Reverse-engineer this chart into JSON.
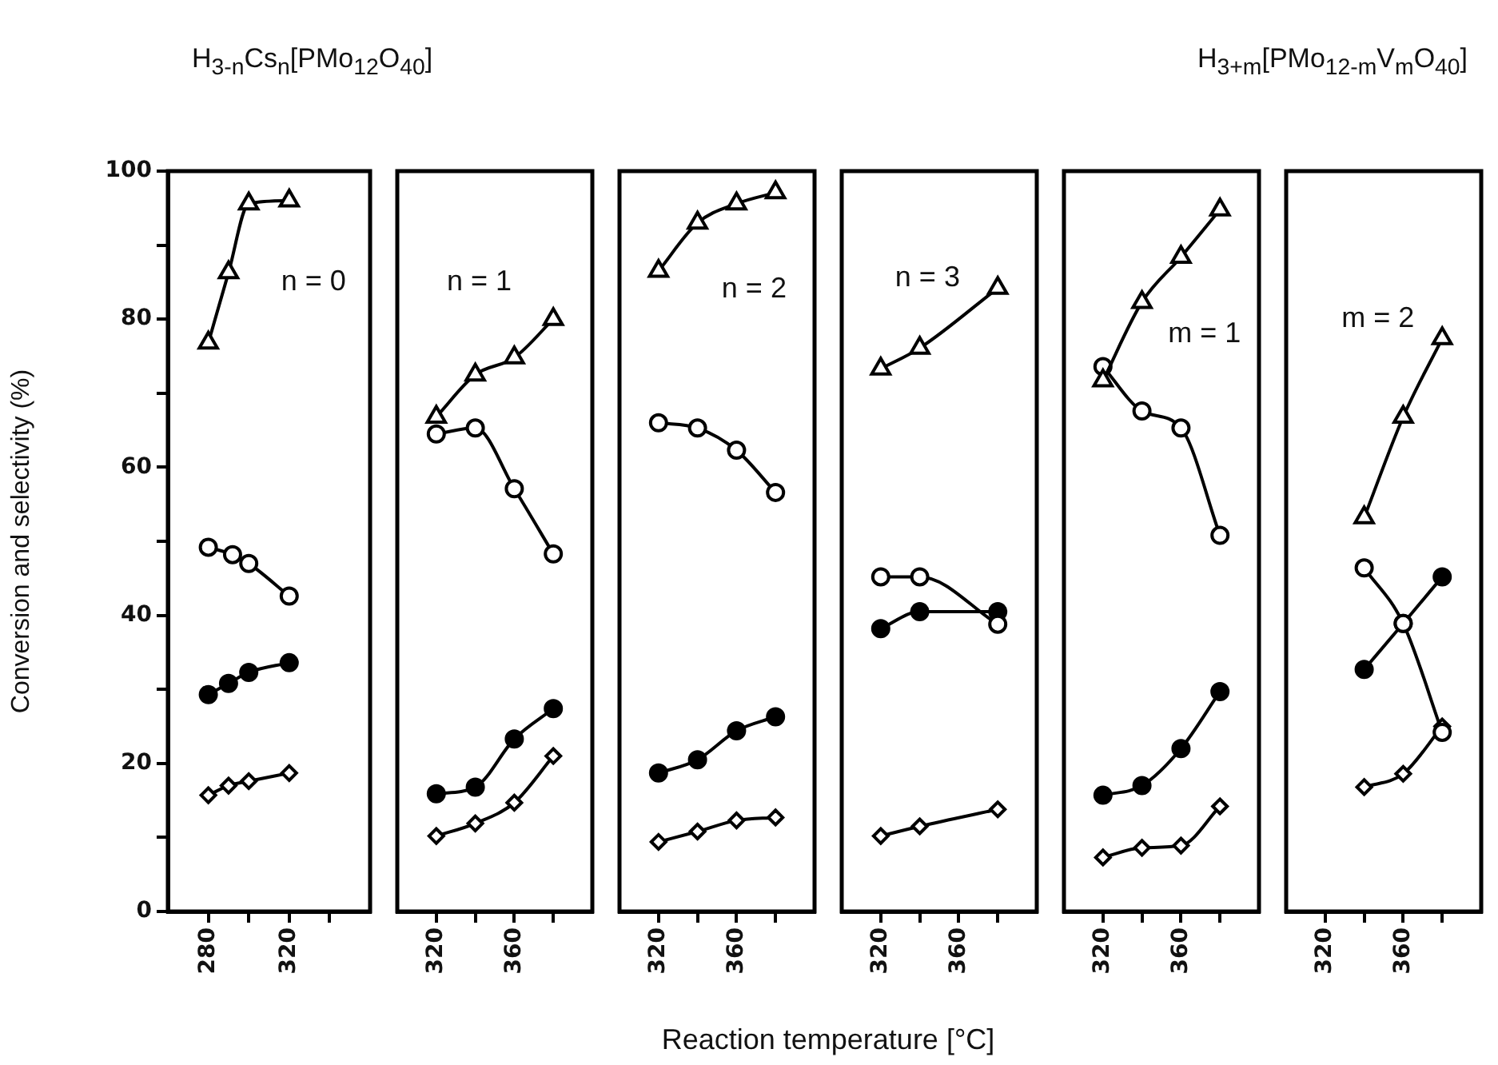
{
  "chart_data": [
    {
      "type": "line",
      "title": "H$_{3-n}$Cs$_{n}$[PMo$_{12}$O$_{40}$]",
      "ylabel": "Conversion and selectivity (%)",
      "annotations": [
        "n = 0"
      ],
      "xlim": [
        260,
        360
      ],
      "xticks": [
        280,
        {
          "value": 300,
          "label": null
        },
        320,
        {
          "value": 340,
          "label": null
        }
      ],
      "ylim": [
        0,
        100
      ],
      "yticks": [
        0,
        {
          "value": 10,
          "label": null
        },
        20,
        {
          "value": 30,
          "label": null
        },
        40,
        {
          "value": 50,
          "label": null
        },
        60,
        {
          "value": 70,
          "label": null
        },
        80,
        {
          "value": 90,
          "label": null
        },
        100
      ],
      "grid": false,
      "legend": false,
      "series": [
        {
          "color": "#000000",
          "marker": "triangle",
          "x": [
            280,
            290,
            300,
            320
          ],
          "values": [
            76.8,
            86.3,
            95.6,
            96
          ]
        },
        {
          "color": "#000000",
          "marker": "circle",
          "x": [
            280,
            292,
            300,
            320
          ],
          "values": [
            49.2,
            48.2,
            47,
            42.6
          ]
        },
        {
          "color": "#000000",
          "colors": [
            "#000000",
            "#000000",
            "#000000",
            "#000000"
          ],
          "marker": "circle",
          "x": [
            280,
            290,
            300,
            320
          ],
          "values": [
            29.3,
            30.8,
            32.3,
            33.6
          ]
        },
        {
          "color": "#000000",
          "marker": "diamond",
          "x": [
            280,
            290,
            300,
            320
          ],
          "values": [
            15.7,
            17,
            17.6,
            18.7
          ]
        }
      ]
    },
    {
      "type": "line",
      "annotations": [
        "n = 1"
      ],
      "xlim": [
        300,
        400
      ],
      "xticks": [
        320,
        {
          "value": 340,
          "label": null
        },
        360,
        {
          "value": 380,
          "label": null
        }
      ],
      "ylim": [
        0,
        100
      ],
      "tick_labels": "x",
      "grid": false,
      "legend": false,
      "series": [
        {
          "color": "#000000",
          "marker": "triangle",
          "x": [
            320,
            340,
            360,
            380
          ],
          "values": [
            66.8,
            72.5,
            74.8,
            80
          ]
        },
        {
          "color": "#000000",
          "marker": "circle",
          "x": [
            320,
            340,
            360,
            380
          ],
          "values": [
            64.5,
            65.3,
            57.1,
            48.3
          ]
        },
        {
          "color": "#000000",
          "colors": [
            "#000000",
            "#000000",
            "#000000",
            "#000000"
          ],
          "marker": "circle",
          "x": [
            320,
            340,
            360,
            380
          ],
          "values": [
            15.9,
            16.8,
            23.3,
            27.4
          ]
        },
        {
          "color": "#000000",
          "marker": "diamond",
          "x": [
            320,
            340,
            360,
            380
          ],
          "values": [
            10.2,
            11.9,
            14.7,
            21
          ]
        }
      ]
    },
    {
      "type": "line",
      "annotations": [
        "n = 2"
      ],
      "xlim": [
        300,
        400
      ],
      "xticks": [
        320,
        {
          "value": 340,
          "label": null
        },
        360,
        {
          "value": 380,
          "label": null
        }
      ],
      "ylim": [
        0,
        100
      ],
      "tick_labels": "x",
      "grid": false,
      "legend": false,
      "series": [
        {
          "color": "#000000",
          "marker": "triangle",
          "x": [
            320,
            340,
            360,
            380
          ],
          "values": [
            86.5,
            93,
            95.6,
            97.1
          ]
        },
        {
          "color": "#000000",
          "marker": "circle",
          "x": [
            320,
            340,
            360,
            380
          ],
          "values": [
            66,
            65.3,
            62.3,
            56.6
          ]
        },
        {
          "color": "#000000",
          "colors": [
            "#000000",
            "#000000",
            "#000000",
            "#000000"
          ],
          "marker": "circle",
          "x": [
            320,
            340,
            360,
            380
          ],
          "values": [
            18.7,
            20.5,
            24.4,
            26.3
          ]
        },
        {
          "color": "#000000",
          "marker": "diamond",
          "x": [
            320,
            340,
            360,
            380
          ],
          "values": [
            9.4,
            10.8,
            12.3,
            12.7
          ]
        }
      ]
    },
    {
      "type": "line",
      "xlabel": "Reaction temperature [°C]",
      "annotations": [
        "n = 3"
      ],
      "xlim": [
        300,
        400
      ],
      "xticks": [
        320,
        {
          "value": 340,
          "label": null
        },
        360,
        {
          "value": 380,
          "label": null
        }
      ],
      "ylim": [
        0,
        100
      ],
      "tick_labels": "x",
      "grid": false,
      "legend": false,
      "series": [
        {
          "color": "#000000",
          "marker": "triangle",
          "x": [
            320,
            340,
            380
          ],
          "values": [
            73.3,
            76.1,
            84.2
          ]
        },
        {
          "color": "#000000",
          "marker": "circle",
          "x": [
            320,
            340,
            380
          ],
          "values": [
            45.2,
            45.2,
            38.8
          ]
        },
        {
          "color": "#000000",
          "colors": [
            "#000000",
            "#000000",
            "#000000"
          ],
          "marker": "circle",
          "x": [
            320,
            340,
            380
          ],
          "values": [
            38.2,
            40.5,
            40.5
          ]
        },
        {
          "color": "#000000",
          "marker": "diamond",
          "x": [
            320,
            340,
            380
          ],
          "values": [
            10.2,
            11.5,
            13.8
          ]
        }
      ]
    },
    {
      "type": "line",
      "title": "H$_{3+m}$[PMo$_{12-m}$V$_{m}$O$_{40}$]",
      "annotations": [
        "m = 1"
      ],
      "xlim": [
        300,
        400
      ],
      "xticks": [
        320,
        {
          "value": 340,
          "label": null
        },
        360,
        {
          "value": 380,
          "label": null
        }
      ],
      "ylim": [
        0,
        100
      ],
      "tick_labels": "x",
      "grid": false,
      "legend": false,
      "series": [
        {
          "color": "#000000",
          "marker": "triangle",
          "x": [
            320,
            340,
            360,
            380
          ],
          "values": [
            71.7,
            82.3,
            88.4,
            94.8
          ]
        },
        {
          "color": "#000000",
          "marker": "circle",
          "x": [
            320,
            340,
            360,
            380
          ],
          "values": [
            73.6,
            67.6,
            65.3,
            50.8
          ]
        },
        {
          "color": "#000000",
          "colors": [
            "#000000",
            "#000000",
            "#000000",
            "#000000"
          ],
          "marker": "circle",
          "x": [
            320,
            340,
            360,
            380
          ],
          "values": [
            15.7,
            17,
            22,
            29.7
          ]
        },
        {
          "color": "#000000",
          "marker": "diamond",
          "x": [
            320,
            340,
            360,
            380
          ],
          "values": [
            7.3,
            8.6,
            8.9,
            14.2
          ]
        }
      ]
    },
    {
      "type": "line",
      "annotations": [
        "m = 2"
      ],
      "xlim": [
        300,
        400
      ],
      "xticks": [
        320,
        {
          "value": 340,
          "label": null
        },
        360,
        {
          "value": 380,
          "label": null
        }
      ],
      "ylim": [
        0,
        100
      ],
      "tick_labels": "x",
      "grid": false,
      "legend": false,
      "series": [
        {
          "color": "#000000",
          "marker": "triangle",
          "x": [
            340,
            360,
            380
          ],
          "values": [
            53.2,
            66.8,
            77.4
          ]
        },
        {
          "color": "#000000",
          "marker": "circle",
          "x": [
            340,
            360,
            380
          ],
          "values": [
            46.4,
            38.9,
            24.2
          ]
        },
        {
          "color": "#000000",
          "colors": [
            "#000000",
            "#000000",
            "#000000"
          ],
          "marker": "circle",
          "x": [
            340,
            360,
            380
          ],
          "values": [
            32.7,
            38.9,
            45.2
          ]
        },
        {
          "color": "#000000",
          "marker": "diamond",
          "x": [
            340,
            360,
            380
          ],
          "values": [
            16.8,
            18.6,
            25
          ]
        }
      ]
    }
  ]
}
